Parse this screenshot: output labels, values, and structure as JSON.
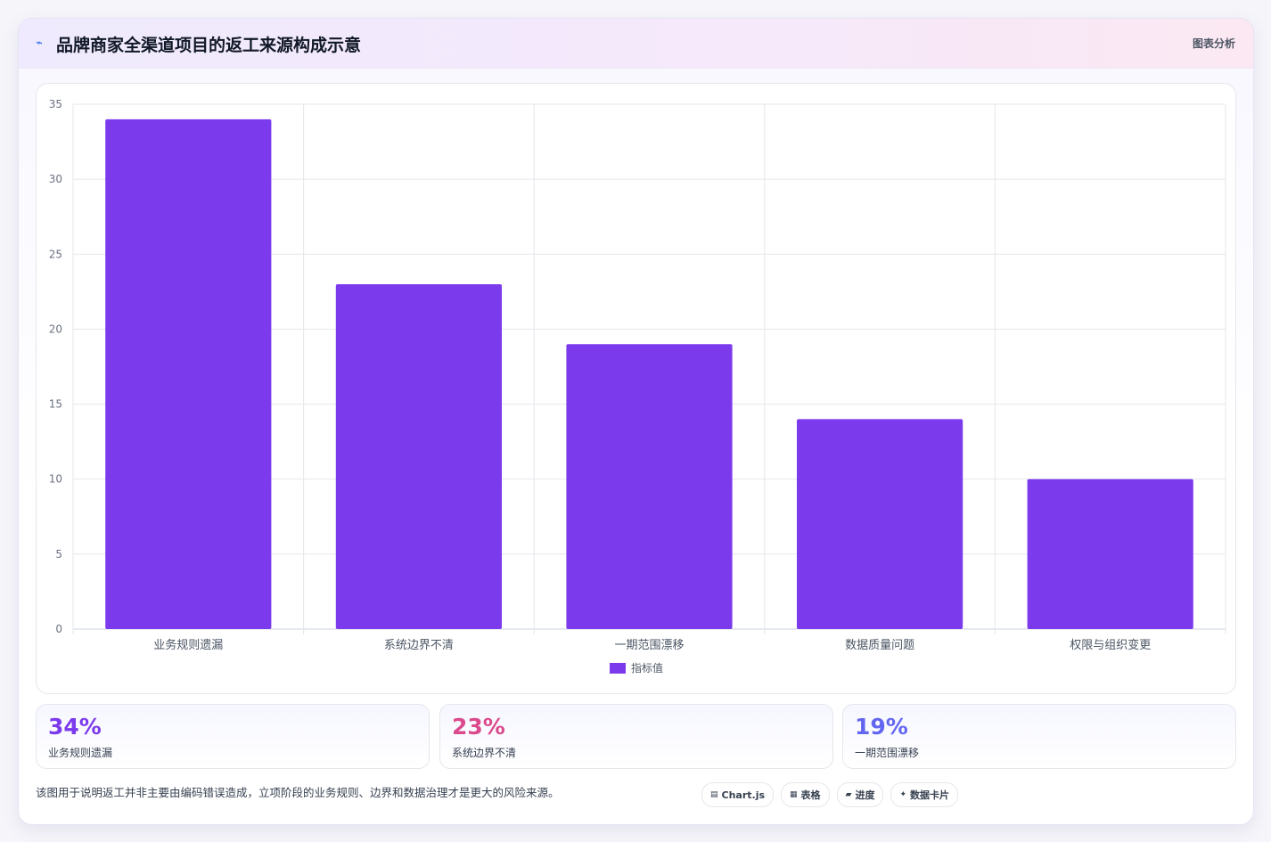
{
  "header": {
    "icon": "chart-line-icon",
    "title": "品牌商家全渠道项目的返工来源构成示意",
    "tag": "图表分析"
  },
  "chart_data": {
    "type": "bar",
    "categories": [
      "业务规则遗漏",
      "系统边界不清",
      "一期范围漂移",
      "数据质量问题",
      "权限与组织变更"
    ],
    "series": [
      {
        "name": "指标值",
        "values": [
          34,
          23,
          19,
          14,
          10
        ],
        "color": "#7c3aed"
      }
    ],
    "ylim": [
      0,
      35
    ],
    "yticks": [
      0,
      5,
      10,
      15,
      20,
      25,
      30,
      35
    ],
    "grid": true,
    "legend": "bottom-center"
  },
  "stats": [
    {
      "value": "34%",
      "label": "业务规则遗漏",
      "color": "#7c3aed"
    },
    {
      "value": "23%",
      "label": "系统边界不清",
      "color": "#db4a8c"
    },
    {
      "value": "19%",
      "label": "一期范围漂移",
      "color": "#6366f1"
    }
  ],
  "note": "该图用于说明返工并非主要由编码错误造成，立项阶段的业务规则、边界和数据治理才是更大的风险来源。",
  "pills": [
    {
      "icon": "database-icon",
      "glyph": "▤",
      "label": "Chart.js"
    },
    {
      "icon": "table-icon",
      "glyph": "▦",
      "label": "表格"
    },
    {
      "icon": "progress-icon",
      "glyph": "▰",
      "label": "进度"
    },
    {
      "icon": "sparkle-icon",
      "glyph": "✦",
      "label": "数据卡片"
    }
  ]
}
